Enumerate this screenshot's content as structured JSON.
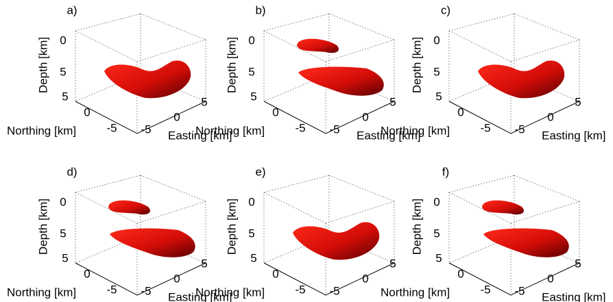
{
  "panels": [
    {
      "label": "a)",
      "depth_label": "Depth [km]",
      "depth_ticks": [
        "0",
        "5"
      ],
      "northing_ticks": [
        "5",
        "0",
        "-5"
      ],
      "easting_ticks": [
        "-5",
        "0",
        "5"
      ],
      "northing_label": "Northing [km]",
      "easting_label": "Easting [km]",
      "blobs": 1
    },
    {
      "label": "b)",
      "depth_label": "Depth [km]",
      "depth_ticks": [
        "0",
        "5"
      ],
      "northing_ticks": [
        "5",
        "0",
        "-5"
      ],
      "easting_ticks": [
        "-5",
        "0",
        "5"
      ],
      "northing_label": "Northing [km]",
      "easting_label": "Easting [km]",
      "blobs": 2
    },
    {
      "label": "c)",
      "depth_label": "Depth [km]",
      "depth_ticks": [
        "0",
        "5"
      ],
      "northing_ticks": [
        "5",
        "0",
        "-5"
      ],
      "easting_ticks": [
        "-5",
        "0",
        "5"
      ],
      "northing_label": "Northing [km]",
      "easting_label": "Easting [km]",
      "blobs": 1
    },
    {
      "label": "d)",
      "depth_label": "Depth [km]",
      "depth_ticks": [
        "0",
        "5"
      ],
      "northing_ticks": [
        "5",
        "0",
        "-5"
      ],
      "easting_ticks": [
        "-5",
        "0",
        "5"
      ],
      "northing_label": "Northing [km]",
      "easting_label": "Easting [km]",
      "blobs": 2
    },
    {
      "label": "e)",
      "depth_label": "Depth [km]",
      "depth_ticks": [
        "0",
        "5"
      ],
      "northing_ticks": [
        "5",
        "0",
        "-5"
      ],
      "easting_ticks": [
        "-5",
        "0",
        "5"
      ],
      "northing_label": "Northing [km]",
      "blobs": 1
    },
    {
      "label": "f)",
      "depth_label": "Depth [km]",
      "depth_ticks": [
        "0",
        "5"
      ],
      "northing_ticks": [
        "5",
        "0",
        "-5"
      ],
      "easting_ticks": [
        "-5",
        "0",
        "5"
      ],
      "northing_label": "Northing [km]",
      "easting_label": "Easting [km]",
      "blobs": 2
    }
  ]
}
